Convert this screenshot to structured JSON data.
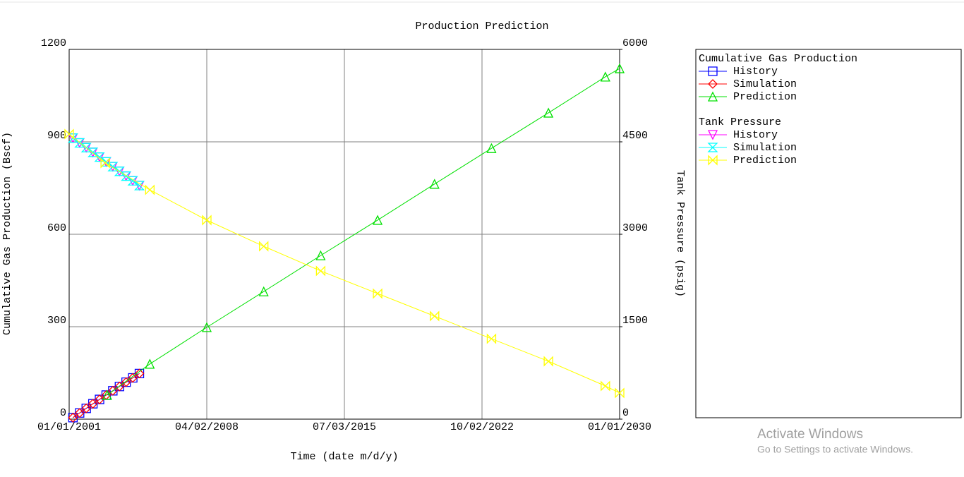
{
  "chart_data": {
    "type": "line",
    "title": "Production Prediction",
    "x_label": "Time (date m/d/y)",
    "y_label": "Cumulative Gas Production (Bscf)",
    "y2_label": "Tank Pressure (psig)",
    "xlim": [
      2001,
      2030
    ],
    "xticks": [
      {
        "value": 2001,
        "label": "01/01/2001"
      },
      {
        "value": 2008.25,
        "label": "04/02/2008"
      },
      {
        "value": 2015.5,
        "label": "07/03/2015"
      },
      {
        "value": 2022.75,
        "label": "10/02/2022"
      },
      {
        "value": 2030,
        "label": "01/01/2030"
      }
    ],
    "ylim": [
      0,
      1200
    ],
    "yticks": [
      0,
      300,
      600,
      900,
      1200
    ],
    "y2lim": [
      0,
      6000
    ],
    "y2ticks": [
      0,
      1500,
      3000,
      4500,
      6000
    ],
    "grid": true,
    "groups": [
      {
        "title": "Cumulative Gas Production",
        "series": [
          {
            "name": "History",
            "color": "#0000ff",
            "marker": "square",
            "axis": "y",
            "x": [
              2001.2,
              2001.55,
              2001.9,
              2002.25,
              2002.6,
              2002.95,
              2003.3,
              2003.65,
              2004.0,
              2004.35,
              2004.7
            ],
            "values": [
              5,
              20,
              35,
              50,
              64,
              78,
              92,
              106,
              120,
              134,
              148
            ]
          },
          {
            "name": "Simulation",
            "color": "#ff0000",
            "marker": "diamond",
            "axis": "y",
            "x": [
              2001.2,
              2001.55,
              2001.9,
              2002.25,
              2002.6,
              2002.95,
              2003.3,
              2003.65,
              2004.0,
              2004.35,
              2004.7
            ],
            "values": [
              5,
              20,
              35,
              50,
              64,
              78,
              92,
              106,
              120,
              134,
              148
            ]
          },
          {
            "name": "Prediction",
            "color": "#00e000",
            "marker": "triangle-up",
            "axis": "y",
            "x": [
              2003.0,
              2005.25,
              2008.25,
              2011.25,
              2014.25,
              2017.25,
              2020.25,
              2023.25,
              2026.25,
              2029.25,
              2030
            ],
            "values": [
              78,
              179,
              298,
              414,
              531,
              646,
              763,
              879,
              994,
              1111,
              1138
            ]
          }
        ]
      },
      {
        "title": "Tank Pressure",
        "series": [
          {
            "name": "History",
            "color": "#ff00ff",
            "marker": "triangle-down",
            "axis": "y2",
            "x": [
              2001.2,
              2001.55,
              2001.9,
              2002.25,
              2002.6,
              2002.95,
              2003.3,
              2003.65,
              2004.0,
              2004.35,
              2004.7
            ],
            "values": [
              4560,
              4483,
              4406,
              4329,
              4252,
              4175,
              4098,
              4021,
              3944,
              3867,
              3790
            ]
          },
          {
            "name": "Simulation",
            "color": "#00ffff",
            "marker": "hourglass",
            "axis": "y2",
            "x": [
              2001.2,
              2001.55,
              2001.9,
              2002.25,
              2002.6,
              2002.95,
              2003.3,
              2003.65,
              2004.0,
              2004.35,
              2004.7
            ],
            "values": [
              4560,
              4483,
              4406,
              4329,
              4252,
              4175,
              4098,
              4021,
              3944,
              3867,
              3790
            ]
          },
          {
            "name": "Prediction",
            "color": "#ffff00",
            "marker": "bowtie",
            "axis": "y2",
            "x": [
              2001.0,
              2002.9,
              2005.25,
              2008.25,
              2011.25,
              2014.25,
              2017.25,
              2020.25,
              2023.25,
              2026.25,
              2029.25,
              2030
            ],
            "values": [
              4626,
              4156,
              3721,
              3229,
              2805,
              2405,
              2038,
              1672,
              1305,
              939,
              538,
              424
            ]
          }
        ]
      }
    ]
  },
  "watermark": {
    "title": "Activate Windows",
    "subtitle": "Go to Settings to activate Windows."
  }
}
